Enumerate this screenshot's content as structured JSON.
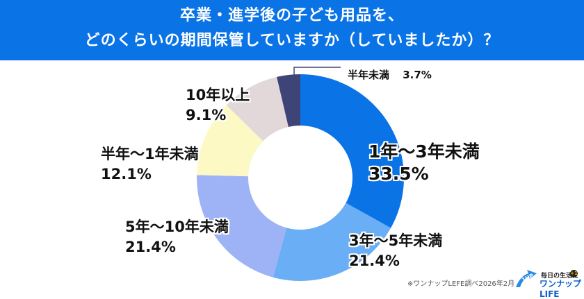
{
  "header": {
    "title_line1": "卒業・進学後の子ども用品を、",
    "title_line2": "どのくらいの期間保管していますか（していましたか）？",
    "background": "#0a74e6"
  },
  "chart_data": {
    "type": "pie",
    "subtype": "donut",
    "title": "卒業・進学後の子ども用品を、どのくらいの期間保管していますか（していましたか）？",
    "categories": [
      "1年〜3年未満",
      "3年〜5年未満",
      "5年〜10年未満",
      "半年〜1年未満",
      "10年以上",
      "半年未満"
    ],
    "values": [
      33.5,
      21.4,
      21.4,
      12.1,
      9.1,
      3.7
    ],
    "unit": "%",
    "colors": [
      "#0a73e6",
      "#6aaef5",
      "#9db3f5",
      "#fdf9c4",
      "#e2d8da",
      "#3f4477"
    ],
    "start_angle_deg": 0,
    "direction": "clockwise",
    "legend": "none (direct labels)"
  },
  "labels": [
    {
      "name": "1年〜3年未満",
      "pct": "33.5%"
    },
    {
      "name": "3年〜5年未満",
      "pct": "21.4%"
    },
    {
      "name": "5年〜10年未満",
      "pct": "21.4%"
    },
    {
      "name": "半年〜1年未満",
      "pct": "12.1%"
    },
    {
      "name": "10年以上",
      "pct": "9.1%"
    },
    {
      "name": "半年未満",
      "pct": "3.7%"
    }
  ],
  "footer": {
    "source_note": "※ワンナップLEFE調べ2026年2月",
    "logo": {
      "tagline": "毎日の生活に",
      "badge": "+1",
      "arrow_text": "1UP",
      "brand": "ワンナップ LIFE"
    }
  }
}
